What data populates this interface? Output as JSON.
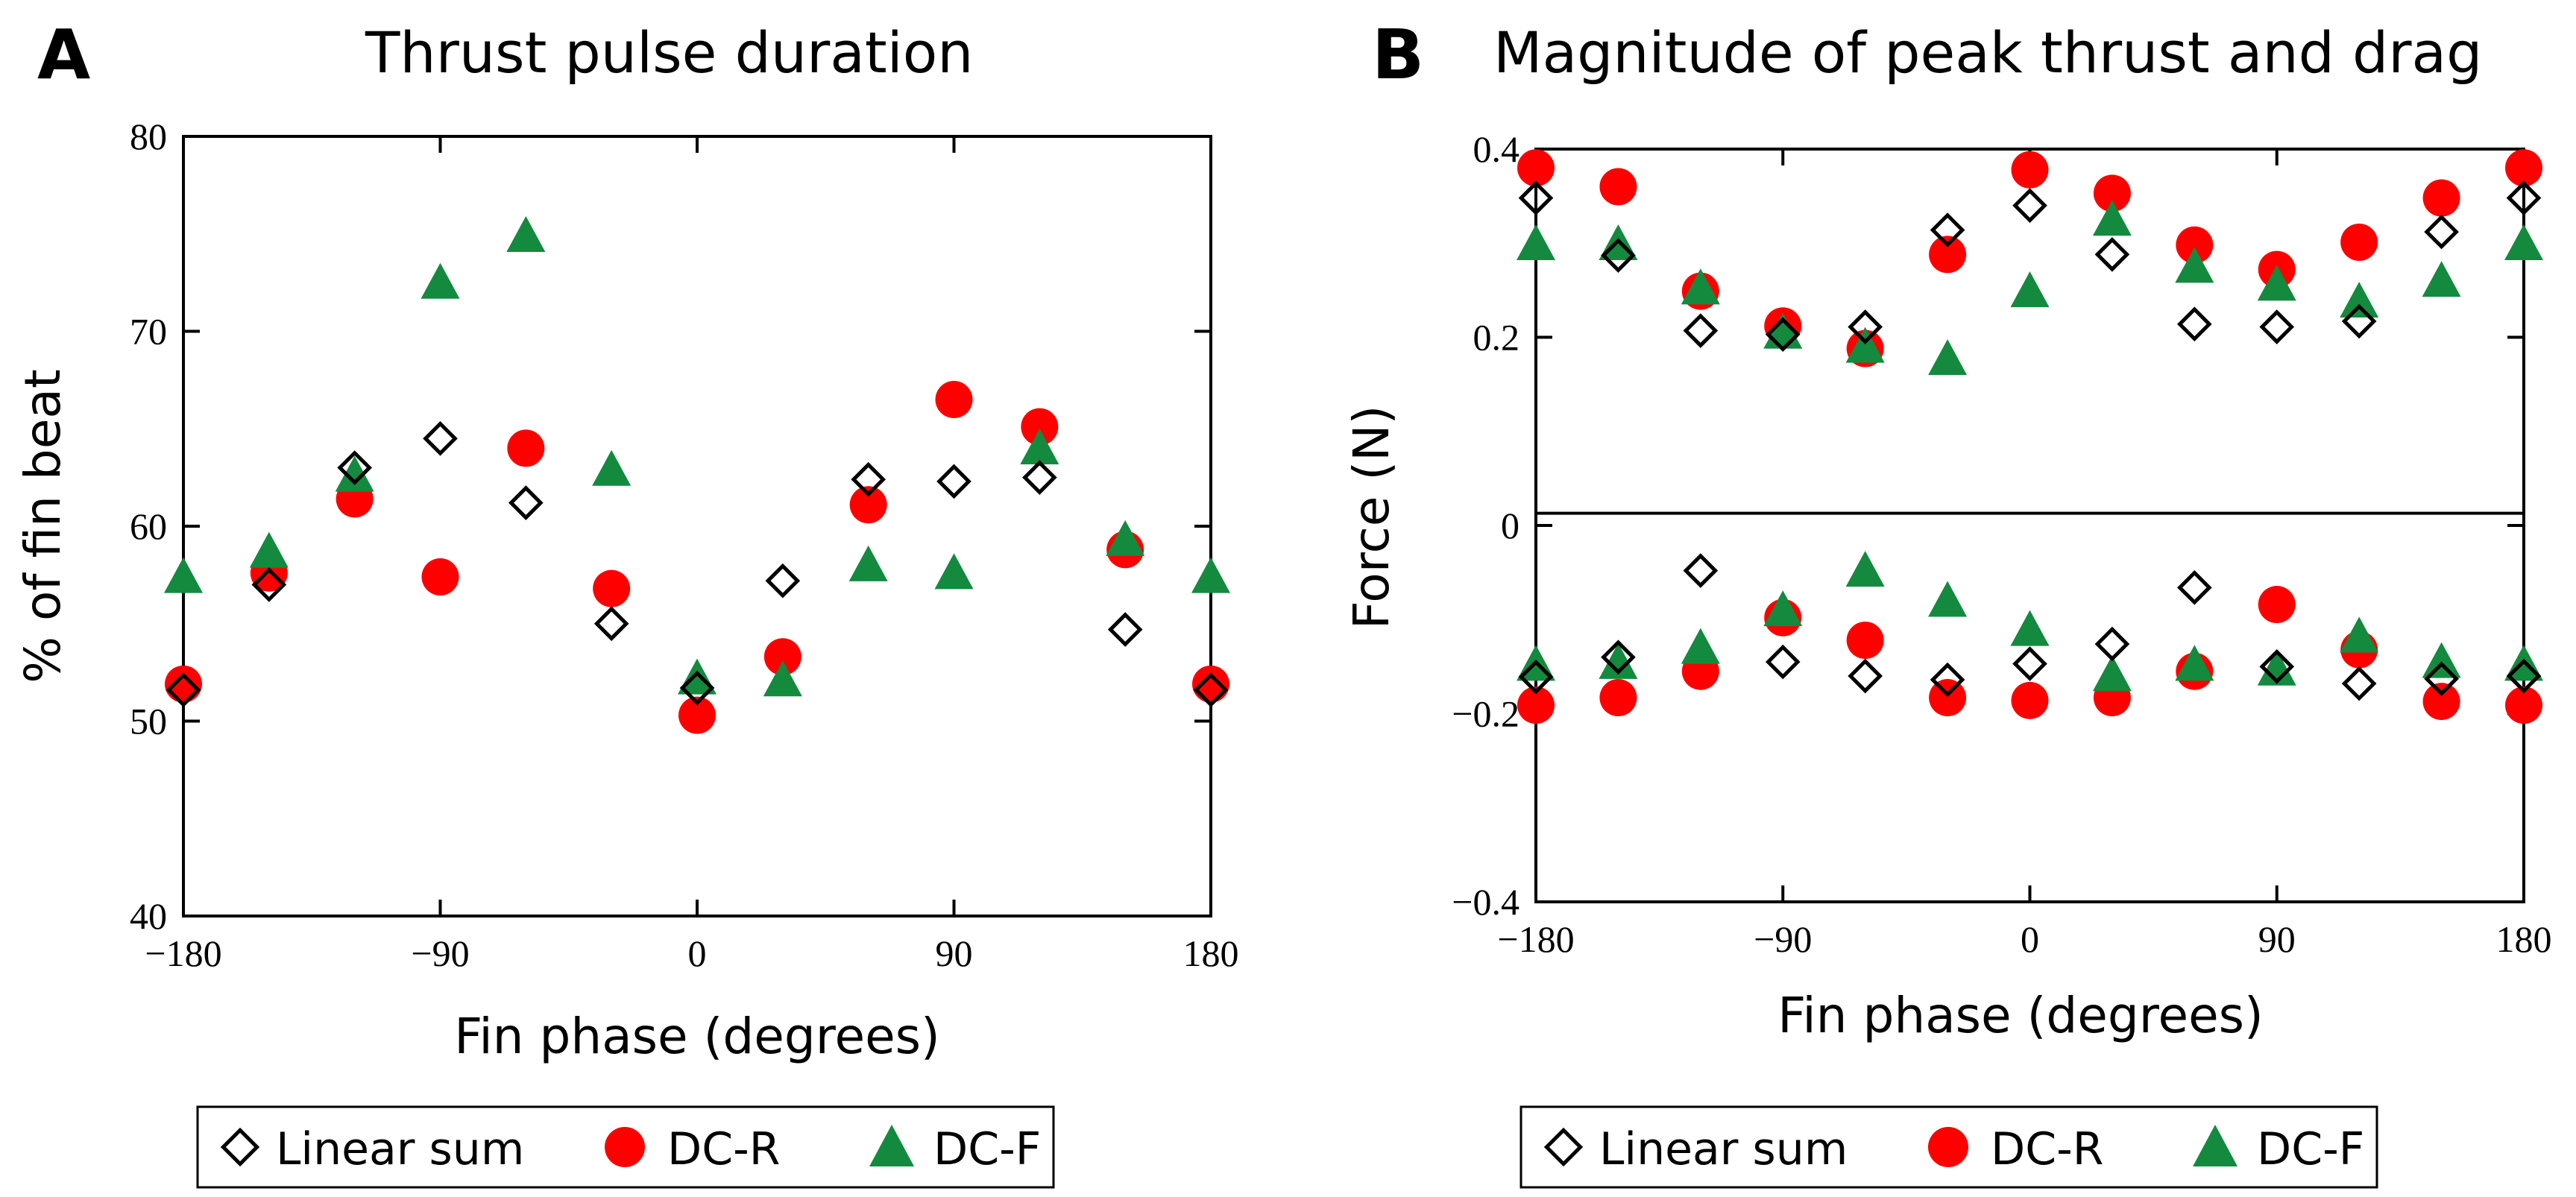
{
  "panel_a": {
    "letter": "A",
    "title": "Thrust pulse duration"
  },
  "panel_b": {
    "letter": "B",
    "title": "Magnitude of peak thrust and drag"
  },
  "legend": [
    {
      "label": "Linear sum",
      "marker": "diamond-icon",
      "color": "#000000"
    },
    {
      "label": "DC-R",
      "marker": "circle-icon",
      "color": "#ff0000"
    },
    {
      "label": "DC-F",
      "marker": "triangle-icon",
      "color": "#138a3e"
    }
  ],
  "chart_data": [
    {
      "type": "scatter",
      "title": "Thrust pulse duration",
      "xlabel": "Fin phase (degrees)",
      "ylabel": "% of fin beat",
      "xlim": [
        -180,
        180
      ],
      "ylim": [
        40,
        80
      ],
      "xticks": [
        -180,
        -90,
        0,
        90,
        180
      ],
      "xtick_labels": [
        "−180",
        "−90",
        "0",
        "90",
        "180"
      ],
      "yticks": [
        40,
        50,
        60,
        70,
        80
      ],
      "ytick_labels": [
        "40",
        "50",
        "60",
        "70",
        "80"
      ],
      "grid": false,
      "series": [
        {
          "name": "Linear sum",
          "marker": "diamond",
          "x": [
            -180,
            -150,
            -120,
            -90,
            -60,
            -30,
            0,
            30,
            60,
            90,
            120,
            150,
            180
          ],
          "y": [
            51.6,
            57.0,
            63.0,
            64.5,
            61.2,
            55.0,
            51.7,
            57.2,
            62.4,
            62.3,
            62.5,
            54.7,
            51.6
          ]
        },
        {
          "name": "DC-R",
          "marker": "circle",
          "x": [
            -180,
            -150,
            -120,
            -90,
            -60,
            -30,
            0,
            30,
            60,
            90,
            120,
            150,
            180
          ],
          "y": [
            51.9,
            57.6,
            61.4,
            57.4,
            64.0,
            56.8,
            50.3,
            53.3,
            61.1,
            66.5,
            65.1,
            58.8,
            51.9
          ]
        },
        {
          "name": "DC-F",
          "marker": "triangle",
          "x": [
            -180,
            -150,
            -120,
            -90,
            -60,
            -30,
            0,
            30,
            60,
            90,
            120,
            150,
            180
          ],
          "y": [
            57.3,
            58.6,
            62.5,
            72.4,
            74.8,
            62.8,
            52.1,
            52.0,
            57.9,
            57.5,
            63.9,
            59.2,
            57.3
          ]
        }
      ]
    },
    {
      "type": "scatter",
      "title": "Magnitude of peak thrust and drag",
      "xlabel": "Fin phase (degrees)",
      "ylabel": "Force (N)",
      "xlim": [
        -180,
        180
      ],
      "ylim": [
        -0.4,
        0.4
      ],
      "xticks": [
        -180,
        -90,
        0,
        90,
        180
      ],
      "xtick_labels": [
        "−180",
        "−90",
        "0",
        "90",
        "180"
      ],
      "yticks": [
        -0.4,
        -0.2,
        0,
        0.2,
        0.4
      ],
      "ytick_labels": [
        "−0.4",
        "−0.2",
        "0",
        "0.2",
        "0.4"
      ],
      "zero_line": 0.013,
      "grid": false,
      "series": [
        {
          "name": "Linear sum",
          "marker": "diamond",
          "x": [
            -180,
            -150,
            -120,
            -90,
            -60,
            -30,
            0,
            30,
            60,
            90,
            120,
            150,
            180,
            -180,
            -150,
            -120,
            -90,
            -60,
            -30,
            0,
            30,
            60,
            90,
            120,
            150,
            180
          ],
          "y": [
            0.348,
            0.287,
            0.207,
            0.203,
            0.211,
            0.314,
            0.34,
            0.288,
            0.214,
            0.211,
            0.217,
            0.312,
            0.348,
            -0.161,
            -0.14,
            -0.048,
            -0.145,
            -0.16,
            -0.164,
            -0.147,
            -0.126,
            -0.066,
            -0.15,
            -0.168,
            -0.163,
            -0.16
          ]
        },
        {
          "name": "DC-R",
          "marker": "circle",
          "x": [
            -180,
            -150,
            -120,
            -90,
            -60,
            -30,
            0,
            30,
            60,
            90,
            120,
            150,
            180,
            -180,
            -150,
            -120,
            -90,
            -60,
            -30,
            0,
            30,
            60,
            90,
            120,
            150,
            180
          ],
          "y": [
            0.38,
            0.36,
            0.249,
            0.212,
            0.188,
            0.288,
            0.378,
            0.353,
            0.298,
            0.272,
            0.301,
            0.348,
            0.38,
            -0.191,
            -0.183,
            -0.155,
            -0.098,
            -0.122,
            -0.183,
            -0.186,
            -0.183,
            -0.155,
            -0.084,
            -0.132,
            -0.187,
            -0.191
          ]
        },
        {
          "name": "DC-F",
          "marker": "triangle",
          "x": [
            -180,
            -150,
            -120,
            -90,
            -60,
            -30,
            0,
            30,
            60,
            90,
            120,
            150,
            180,
            -180,
            -150,
            -120,
            -90,
            -60,
            -30,
            0,
            30,
            60,
            90,
            120,
            150,
            180
          ],
          "y": [
            0.297,
            0.297,
            0.25,
            0.203,
            0.188,
            0.175,
            0.247,
            0.323,
            0.273,
            0.254,
            0.236,
            0.258,
            0.297,
            -0.15,
            -0.148,
            -0.132,
            -0.092,
            -0.05,
            -0.082,
            -0.113,
            -0.161,
            -0.15,
            -0.155,
            -0.12,
            -0.147,
            -0.15
          ]
        }
      ]
    }
  ]
}
